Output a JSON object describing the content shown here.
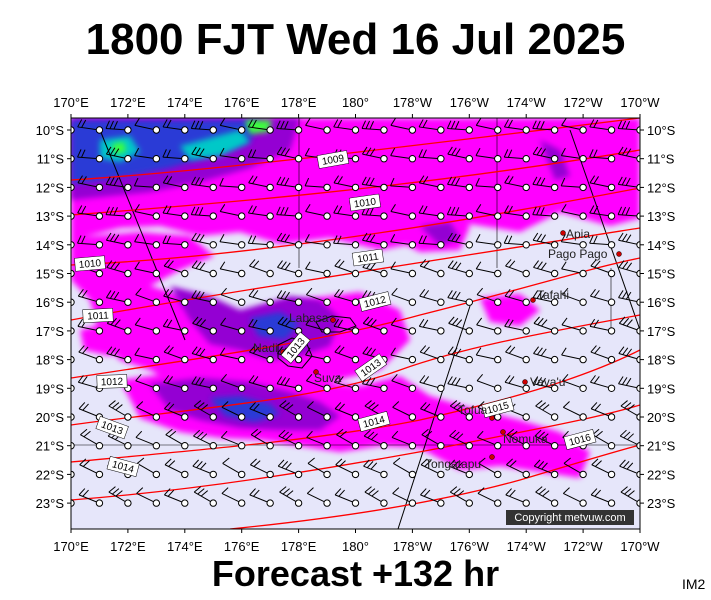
{
  "title": "1800 FJT Wed 16 Jul 2025",
  "footer": "Forecast +132 hr",
  "image_id": "IM2",
  "copyright": "Copyright metvuw.com",
  "axes": {
    "lon_labels": [
      "170°E",
      "172°E",
      "174°E",
      "176°E",
      "178°E",
      "180°",
      "178°W",
      "176°W",
      "174°W",
      "172°W",
      "170°W"
    ],
    "lat_labels": [
      "10°S",
      "11°S",
      "12°S",
      "13°S",
      "14°S",
      "15°S",
      "16°S",
      "17°S",
      "18°S",
      "19°S",
      "20°S",
      "21°S",
      "22°S",
      "23°S"
    ]
  },
  "places": [
    "Apia",
    "Pago Pago",
    "Tafahi",
    "Labasa",
    "Nadi",
    "Suva",
    "Vava'u",
    "Tofua",
    "Nomuka",
    "Tongatapu"
  ],
  "isobars": [
    "1009",
    "1010",
    "1010",
    "1011",
    "1011",
    "1012",
    "1012",
    "1013",
    "1013",
    "1013",
    "1014",
    "1014",
    "1015",
    "1016"
  ],
  "colors": {
    "background_sea": "#e6e6fa",
    "rain_light": "#ff00ff",
    "rain_moderate": "#9400d3",
    "rain_heavy": "#2b3bd6",
    "rain_very_heavy": "#00c8c8",
    "rain_extreme": "#3cff3c",
    "isobar": "#ff0000",
    "track": "#000000"
  }
}
